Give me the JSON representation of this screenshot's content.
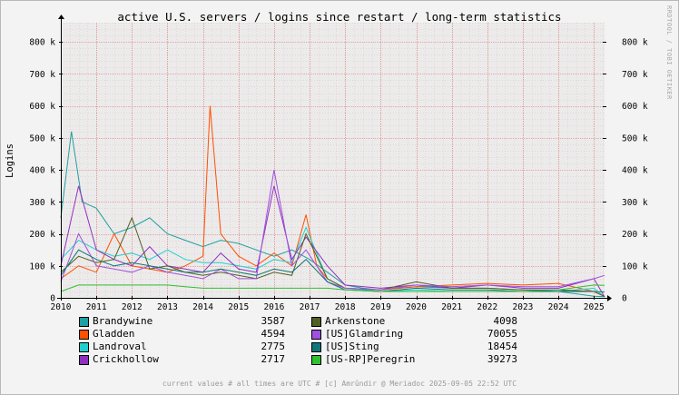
{
  "chart_data": {
    "type": "line",
    "title": "active U.S. servers / logins since restart / long-term statistics",
    "ylabel": "Logins",
    "x_tick_labels": [
      "2010",
      "2011",
      "2012",
      "2013",
      "2014",
      "2015",
      "2016",
      "2017",
      "2018",
      "2019",
      "2020",
      "2021",
      "2022",
      "2023",
      "2024",
      "2025"
    ],
    "x_range": [
      2010.0,
      2025.3
    ],
    "y_tick_labels": [
      "0",
      "100 k",
      "200 k",
      "300 k",
      "400 k",
      "500 k",
      "600 k",
      "700 k",
      "800 k"
    ],
    "y_ticks": [
      0,
      100000,
      200000,
      300000,
      400000,
      500000,
      600000,
      700000,
      800000
    ],
    "ylim": [
      0,
      860000
    ],
    "grid": true,
    "legend_position": "bottom",
    "series": [
      {
        "name": "Brandywine",
        "color": "#20a0a0",
        "current": "3587",
        "points": [
          [
            2010.0,
            250000
          ],
          [
            2010.3,
            520000
          ],
          [
            2010.6,
            300000
          ],
          [
            2011.0,
            280000
          ],
          [
            2011.5,
            200000
          ],
          [
            2012.0,
            220000
          ],
          [
            2012.5,
            250000
          ],
          [
            2013.0,
            200000
          ],
          [
            2013.5,
            180000
          ],
          [
            2014.0,
            160000
          ],
          [
            2014.5,
            180000
          ],
          [
            2015.0,
            170000
          ],
          [
            2015.5,
            150000
          ],
          [
            2016.0,
            130000
          ],
          [
            2016.5,
            150000
          ],
          [
            2017.0,
            120000
          ],
          [
            2017.5,
            80000
          ],
          [
            2018.0,
            40000
          ],
          [
            2018.5,
            30000
          ],
          [
            2019.0,
            25000
          ],
          [
            2019.5,
            30000
          ],
          [
            2020.0,
            35000
          ],
          [
            2021.0,
            30000
          ],
          [
            2022.0,
            30000
          ],
          [
            2023.0,
            25000
          ],
          [
            2024.0,
            20000
          ],
          [
            2025.0,
            5000
          ],
          [
            2025.3,
            3587
          ]
        ]
      },
      {
        "name": "Gladden",
        "color": "#ff5000",
        "current": "4594",
        "points": [
          [
            2010.0,
            60000
          ],
          [
            2010.5,
            100000
          ],
          [
            2011.0,
            80000
          ],
          [
            2011.5,
            200000
          ],
          [
            2012.0,
            100000
          ],
          [
            2012.5,
            90000
          ],
          [
            2013.0,
            80000
          ],
          [
            2013.5,
            100000
          ],
          [
            2014.0,
            130000
          ],
          [
            2014.2,
            600000
          ],
          [
            2014.5,
            200000
          ],
          [
            2015.0,
            130000
          ],
          [
            2015.5,
            100000
          ],
          [
            2016.0,
            140000
          ],
          [
            2016.5,
            100000
          ],
          [
            2016.9,
            260000
          ],
          [
            2017.2,
            100000
          ],
          [
            2017.5,
            60000
          ],
          [
            2018.0,
            30000
          ],
          [
            2019.0,
            25000
          ],
          [
            2020.0,
            35000
          ],
          [
            2021.0,
            40000
          ],
          [
            2022.0,
            45000
          ],
          [
            2023.0,
            40000
          ],
          [
            2024.0,
            45000
          ],
          [
            2025.0,
            20000
          ],
          [
            2025.3,
            4594
          ]
        ]
      },
      {
        "name": "Landroval",
        "color": "#20d0d0",
        "current": "2775",
        "points": [
          [
            2010.0,
            120000
          ],
          [
            2010.5,
            180000
          ],
          [
            2011.0,
            150000
          ],
          [
            2011.5,
            130000
          ],
          [
            2012.0,
            140000
          ],
          [
            2012.5,
            120000
          ],
          [
            2013.0,
            150000
          ],
          [
            2013.5,
            120000
          ],
          [
            2014.0,
            110000
          ],
          [
            2014.5,
            110000
          ],
          [
            2015.0,
            100000
          ],
          [
            2015.5,
            90000
          ],
          [
            2016.0,
            120000
          ],
          [
            2016.5,
            110000
          ],
          [
            2016.9,
            220000
          ],
          [
            2017.5,
            60000
          ],
          [
            2018.0,
            30000
          ],
          [
            2019.0,
            20000
          ],
          [
            2020.0,
            25000
          ],
          [
            2021.0,
            20000
          ],
          [
            2022.0,
            20000
          ],
          [
            2023.0,
            20000
          ],
          [
            2024.0,
            20000
          ],
          [
            2025.0,
            30000
          ],
          [
            2025.3,
            2775
          ]
        ]
      },
      {
        "name": "Crickhollow",
        "color": "#9030c0",
        "current": "2717",
        "points": [
          [
            2010.0,
            100000
          ],
          [
            2010.5,
            350000
          ],
          [
            2011.0,
            150000
          ],
          [
            2011.5,
            120000
          ],
          [
            2012.0,
            100000
          ],
          [
            2012.5,
            160000
          ],
          [
            2013.0,
            100000
          ],
          [
            2013.5,
            90000
          ],
          [
            2014.0,
            80000
          ],
          [
            2014.5,
            140000
          ],
          [
            2015.0,
            90000
          ],
          [
            2015.5,
            80000
          ],
          [
            2016.0,
            350000
          ],
          [
            2016.5,
            120000
          ],
          [
            2016.9,
            190000
          ],
          [
            2017.5,
            100000
          ],
          [
            2018.0,
            40000
          ],
          [
            2019.0,
            30000
          ],
          [
            2020.0,
            40000
          ],
          [
            2021.0,
            30000
          ],
          [
            2022.0,
            40000
          ],
          [
            2023.0,
            30000
          ],
          [
            2024.0,
            30000
          ],
          [
            2025.0,
            60000
          ],
          [
            2025.3,
            2717
          ]
        ]
      },
      {
        "name": "Arkenstone",
        "color": "#506020",
        "current": "4098",
        "points": [
          [
            2010.0,
            80000
          ],
          [
            2010.5,
            130000
          ],
          [
            2011.0,
            110000
          ],
          [
            2011.5,
            120000
          ],
          [
            2012.0,
            250000
          ],
          [
            2012.5,
            90000
          ],
          [
            2013.0,
            100000
          ],
          [
            2013.5,
            80000
          ],
          [
            2014.0,
            70000
          ],
          [
            2014.5,
            80000
          ],
          [
            2015.0,
            70000
          ],
          [
            2015.5,
            60000
          ],
          [
            2016.0,
            80000
          ],
          [
            2016.5,
            70000
          ],
          [
            2016.9,
            200000
          ],
          [
            2017.5,
            60000
          ],
          [
            2018.0,
            30000
          ],
          [
            2019.0,
            25000
          ],
          [
            2020.0,
            50000
          ],
          [
            2021.0,
            30000
          ],
          [
            2022.0,
            30000
          ],
          [
            2023.0,
            25000
          ],
          [
            2024.0,
            25000
          ],
          [
            2025.0,
            20000
          ],
          [
            2025.3,
            4098
          ]
        ]
      },
      {
        "name": "[US]Glamdring",
        "color": "#a050e0",
        "current": "70055",
        "points": [
          [
            2010.0,
            50000
          ],
          [
            2010.5,
            200000
          ],
          [
            2011.0,
            100000
          ],
          [
            2011.5,
            90000
          ],
          [
            2012.0,
            80000
          ],
          [
            2012.5,
            100000
          ],
          [
            2013.0,
            80000
          ],
          [
            2013.5,
            70000
          ],
          [
            2014.0,
            60000
          ],
          [
            2014.5,
            90000
          ],
          [
            2015.0,
            60000
          ],
          [
            2015.5,
            60000
          ],
          [
            2016.0,
            400000
          ],
          [
            2016.5,
            100000
          ],
          [
            2016.9,
            150000
          ],
          [
            2017.5,
            50000
          ],
          [
            2018.0,
            30000
          ],
          [
            2019.0,
            25000
          ],
          [
            2020.0,
            40000
          ],
          [
            2021.0,
            35000
          ],
          [
            2022.0,
            40000
          ],
          [
            2023.0,
            35000
          ],
          [
            2024.0,
            35000
          ],
          [
            2025.0,
            60000
          ],
          [
            2025.3,
            70055
          ]
        ]
      },
      {
        "name": "[US]Sting",
        "color": "#107878",
        "current": "18454",
        "points": [
          [
            2010.0,
            70000
          ],
          [
            2010.5,
            150000
          ],
          [
            2011.0,
            120000
          ],
          [
            2011.5,
            100000
          ],
          [
            2012.0,
            110000
          ],
          [
            2012.5,
            100000
          ],
          [
            2013.0,
            90000
          ],
          [
            2013.5,
            80000
          ],
          [
            2014.0,
            80000
          ],
          [
            2014.5,
            90000
          ],
          [
            2015.0,
            80000
          ],
          [
            2015.5,
            70000
          ],
          [
            2016.0,
            90000
          ],
          [
            2016.5,
            80000
          ],
          [
            2016.9,
            120000
          ],
          [
            2017.5,
            50000
          ],
          [
            2018.0,
            25000
          ],
          [
            2019.0,
            20000
          ],
          [
            2020.0,
            30000
          ],
          [
            2021.0,
            25000
          ],
          [
            2022.0,
            25000
          ],
          [
            2023.0,
            20000
          ],
          [
            2024.0,
            20000
          ],
          [
            2025.0,
            20000
          ],
          [
            2025.3,
            18454
          ]
        ]
      },
      {
        "name": "[US-RP]Peregrin",
        "color": "#30c030",
        "current": "39273",
        "points": [
          [
            2010.0,
            20000
          ],
          [
            2010.5,
            40000
          ],
          [
            2011.0,
            40000
          ],
          [
            2011.5,
            40000
          ],
          [
            2012.0,
            40000
          ],
          [
            2012.5,
            40000
          ],
          [
            2013.0,
            40000
          ],
          [
            2013.5,
            35000
          ],
          [
            2014.0,
            30000
          ],
          [
            2014.5,
            30000
          ],
          [
            2015.0,
            30000
          ],
          [
            2015.5,
            30000
          ],
          [
            2016.0,
            30000
          ],
          [
            2016.5,
            30000
          ],
          [
            2017.0,
            30000
          ],
          [
            2017.5,
            30000
          ],
          [
            2018.0,
            25000
          ],
          [
            2019.0,
            20000
          ],
          [
            2020.0,
            20000
          ],
          [
            2021.0,
            20000
          ],
          [
            2022.0,
            20000
          ],
          [
            2023.0,
            20000
          ],
          [
            2024.0,
            25000
          ],
          [
            2025.0,
            40000
          ],
          [
            2025.3,
            39273
          ]
        ]
      }
    ]
  },
  "footer": "current values # all times are UTC # [c] Amrûndir @ Meriadoc 2025-09-05 22:52 UTC",
  "watermark": "RRDTOOL / TOBI OETIKER"
}
